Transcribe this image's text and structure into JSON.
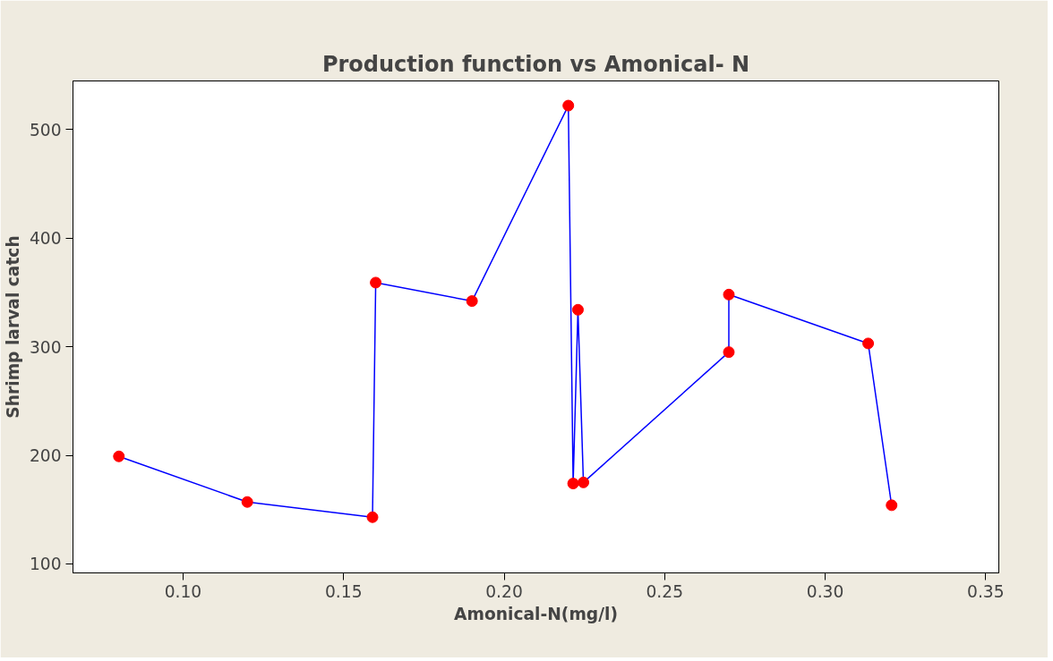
{
  "chart_data": {
    "type": "line",
    "title": "Production function vs Amonical- N",
    "xlabel": "Amonical-N(mg/l)",
    "ylabel": "Shrimp larval catch",
    "x": [
      0.08,
      0.12,
      0.159,
      0.16,
      0.19,
      0.22,
      0.2215,
      0.223,
      0.2247,
      0.27,
      0.27,
      0.3134,
      0.3207
    ],
    "series": [
      {
        "color": "#0000ff",
        "colors": [
          "#ff0000",
          "#ff0000",
          "#ff0000",
          "#ff0000",
          "#ff0000",
          "#ff0000",
          "#ff0000",
          "#ff0000",
          "#ff0000",
          "#ff0000",
          "#ff0000",
          "#ff0000",
          "#ff0000"
        ],
        "values": [
          199,
          157,
          143,
          359,
          342,
          522,
          174,
          334,
          175,
          295,
          348,
          303,
          154
        ]
      }
    ],
    "marker": "circle",
    "line_style": "solid",
    "grid": false,
    "xlim": [
      0.0657,
      0.3541
    ],
    "ylim": [
      91.7,
      544.7
    ],
    "xticks": [
      {
        "value": 0.1,
        "label": "0.10"
      },
      {
        "value": 0.15,
        "label": "0.15"
      },
      {
        "value": 0.2,
        "label": "0.20"
      },
      {
        "value": 0.25,
        "label": "0.25"
      },
      {
        "value": 0.3,
        "label": "0.30"
      },
      {
        "value": 0.35,
        "label": "0.35"
      }
    ],
    "yticks": [
      100,
      200,
      300,
      400,
      500
    ]
  }
}
